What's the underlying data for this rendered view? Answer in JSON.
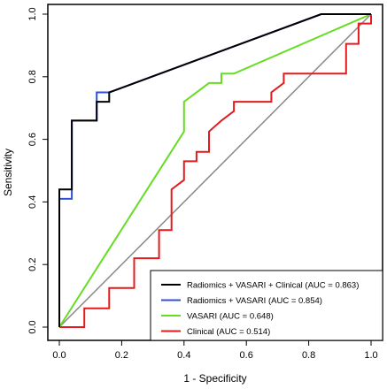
{
  "chart_data": {
    "type": "line",
    "title": "",
    "xlabel": "1 - Specificity",
    "ylabel": "Sensitivity",
    "xlim": [
      0,
      1
    ],
    "ylim": [
      0,
      1
    ],
    "x_ticks": [
      "0.0",
      "0.2",
      "0.4",
      "0.6",
      "0.8",
      "1.0"
    ],
    "y_ticks": [
      "0.0",
      "0.2",
      "0.4",
      "0.6",
      "0.8",
      "1.0"
    ],
    "grid": false,
    "legend_position": "bottom-right",
    "reference_line": {
      "from": [
        0,
        0
      ],
      "to": [
        1,
        1
      ],
      "color": "#888888"
    },
    "series": [
      {
        "name": "Radiomics + VASARI + Clinical (AUC = 0.863)",
        "color": "#000000",
        "points": [
          [
            0,
            0
          ],
          [
            0,
            0.44
          ],
          [
            0.04,
            0.44
          ],
          [
            0.04,
            0.66
          ],
          [
            0.12,
            0.66
          ],
          [
            0.12,
            0.72
          ],
          [
            0.16,
            0.72
          ],
          [
            0.16,
            0.75
          ],
          [
            0.84,
            1
          ],
          [
            1,
            1
          ]
        ]
      },
      {
        "name": "Radiomics + VASARI (AUC = 0.854)",
        "color": "#2f4fd6",
        "points": [
          [
            0,
            0
          ],
          [
            0,
            0.41
          ],
          [
            0.04,
            0.41
          ],
          [
            0.04,
            0.66
          ],
          [
            0.12,
            0.66
          ],
          [
            0.12,
            0.75
          ],
          [
            0.16,
            0.75
          ],
          [
            0.84,
            1
          ],
          [
            1,
            1
          ]
        ]
      },
      {
        "name": "VASARI (AUC = 0.648)",
        "color": "#66dd22",
        "points": [
          [
            0,
            0
          ],
          [
            0.4,
            0.625
          ],
          [
            0.4,
            0.72
          ],
          [
            0.48,
            0.78
          ],
          [
            0.52,
            0.78
          ],
          [
            0.52,
            0.81
          ],
          [
            0.56,
            0.81
          ],
          [
            1,
            1
          ]
        ]
      },
      {
        "name": "Clinical (AUC = 0.514)",
        "color": "#e41a1c",
        "points": [
          [
            0,
            0
          ],
          [
            0.08,
            0
          ],
          [
            0.08,
            0.06
          ],
          [
            0.16,
            0.06
          ],
          [
            0.16,
            0.125
          ],
          [
            0.24,
            0.125
          ],
          [
            0.24,
            0.22
          ],
          [
            0.32,
            0.22
          ],
          [
            0.32,
            0.31
          ],
          [
            0.36,
            0.31
          ],
          [
            0.36,
            0.44
          ],
          [
            0.4,
            0.47
          ],
          [
            0.4,
            0.53
          ],
          [
            0.44,
            0.53
          ],
          [
            0.44,
            0.56
          ],
          [
            0.48,
            0.56
          ],
          [
            0.48,
            0.625
          ],
          [
            0.52,
            0.66
          ],
          [
            0.56,
            0.69
          ],
          [
            0.56,
            0.72
          ],
          [
            0.68,
            0.72
          ],
          [
            0.68,
            0.75
          ],
          [
            0.72,
            0.78
          ],
          [
            0.72,
            0.81
          ],
          [
            0.92,
            0.81
          ],
          [
            0.92,
            0.905
          ],
          [
            0.96,
            0.905
          ],
          [
            0.96,
            0.97
          ],
          [
            1,
            0.97
          ],
          [
            1,
            1
          ]
        ]
      }
    ]
  }
}
